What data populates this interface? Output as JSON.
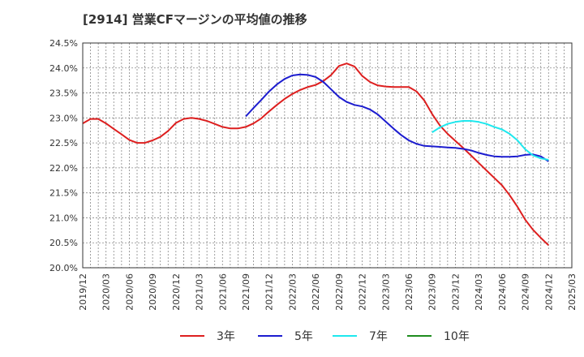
{
  "chart_data": {
    "type": "line",
    "title": "[2914]  営業CFマージンの平均値の推移",
    "xlabel": "",
    "ylabel": "",
    "x_ticks": [
      "2019/12",
      "2020/03",
      "2020/06",
      "2020/09",
      "2020/12",
      "2021/03",
      "2021/06",
      "2021/09",
      "2021/12",
      "2022/03",
      "2022/06",
      "2022/09",
      "2022/12",
      "2023/03",
      "2023/06",
      "2023/09",
      "2023/12",
      "2024/03",
      "2024/06",
      "2024/09",
      "2024/12",
      "2025/03"
    ],
    "y_ticks": [
      "20.0%",
      "20.5%",
      "21.0%",
      "21.5%",
      "22.0%",
      "22.5%",
      "23.0%",
      "23.5%",
      "24.0%",
      "24.5%"
    ],
    "ylim": [
      20.0,
      24.5
    ],
    "grid": true,
    "legend_position": "bottom",
    "series": [
      {
        "name": "3年",
        "color": "#dd1f1f",
        "x": [
          "2019/12",
          "2020/01",
          "2020/02",
          "2020/03",
          "2020/04",
          "2020/05",
          "2020/06",
          "2020/07",
          "2020/08",
          "2020/09",
          "2020/10",
          "2020/11",
          "2020/12",
          "2021/01",
          "2021/02",
          "2021/03",
          "2021/04",
          "2021/05",
          "2021/06",
          "2021/07",
          "2021/08",
          "2021/09",
          "2021/10",
          "2021/11",
          "2021/12",
          "2022/01",
          "2022/02",
          "2022/03",
          "2022/04",
          "2022/05",
          "2022/06",
          "2022/07",
          "2022/08",
          "2022/09",
          "2022/10",
          "2022/11",
          "2022/12",
          "2023/01",
          "2023/02",
          "2023/03",
          "2023/04",
          "2023/05",
          "2023/06",
          "2023/07",
          "2023/08",
          "2023/09",
          "2023/10",
          "2023/11",
          "2023/12",
          "2024/01",
          "2024/02",
          "2024/03",
          "2024/04",
          "2024/05",
          "2024/06",
          "2024/07",
          "2024/08",
          "2024/09",
          "2024/10",
          "2024/11",
          "2024/12"
        ],
        "values": [
          22.89,
          22.98,
          22.98,
          22.89,
          22.78,
          22.67,
          22.56,
          22.5,
          22.5,
          22.55,
          22.62,
          22.74,
          22.9,
          22.98,
          23.0,
          22.98,
          22.94,
          22.88,
          22.82,
          22.79,
          22.79,
          22.82,
          22.89,
          22.99,
          23.13,
          23.26,
          23.38,
          23.48,
          23.56,
          23.62,
          23.66,
          23.74,
          23.86,
          24.04,
          24.09,
          24.03,
          23.84,
          23.72,
          23.65,
          23.63,
          23.62,
          23.62,
          23.62,
          23.53,
          23.35,
          23.08,
          22.85,
          22.68,
          22.54,
          22.4,
          22.25,
          22.1,
          21.95,
          21.8,
          21.65,
          21.45,
          21.22,
          20.96,
          20.76,
          20.6,
          20.45
        ]
      },
      {
        "name": "5年",
        "color": "#1c1ccf",
        "x": [
          "2021/09",
          "2021/10",
          "2021/11",
          "2021/12",
          "2022/01",
          "2022/02",
          "2022/03",
          "2022/04",
          "2022/05",
          "2022/06",
          "2022/07",
          "2022/08",
          "2022/09",
          "2022/10",
          "2022/11",
          "2022/12",
          "2023/01",
          "2023/02",
          "2023/03",
          "2023/04",
          "2023/05",
          "2023/06",
          "2023/07",
          "2023/08",
          "2023/09",
          "2023/10",
          "2023/11",
          "2023/12",
          "2024/01",
          "2024/02",
          "2024/03",
          "2024/04",
          "2024/05",
          "2024/06",
          "2024/07",
          "2024/08",
          "2024/09",
          "2024/10",
          "2024/11",
          "2024/12"
        ],
        "values": [
          23.03,
          23.2,
          23.36,
          23.53,
          23.67,
          23.78,
          23.85,
          23.87,
          23.86,
          23.82,
          23.72,
          23.57,
          23.42,
          23.32,
          23.26,
          23.23,
          23.17,
          23.07,
          22.93,
          22.79,
          22.66,
          22.55,
          22.48,
          22.44,
          22.43,
          22.42,
          22.41,
          22.4,
          22.38,
          22.35,
          22.3,
          22.26,
          22.23,
          22.22,
          22.22,
          22.23,
          22.26,
          22.27,
          22.23,
          22.13
        ]
      },
      {
        "name": "7年",
        "color": "#1ee8ee",
        "x": [
          "2023/09",
          "2023/10",
          "2023/11",
          "2023/12",
          "2024/01",
          "2024/02",
          "2024/03",
          "2024/04",
          "2024/05",
          "2024/06",
          "2024/07",
          "2024/08",
          "2024/09",
          "2024/10",
          "2024/11",
          "2024/12"
        ],
        "values": [
          22.71,
          22.81,
          22.88,
          22.92,
          22.94,
          22.94,
          22.92,
          22.88,
          22.82,
          22.77,
          22.68,
          22.55,
          22.37,
          22.25,
          22.19,
          22.16
        ]
      },
      {
        "name": "10年",
        "color": "#1e8c1e",
        "x": [],
        "values": []
      }
    ]
  }
}
